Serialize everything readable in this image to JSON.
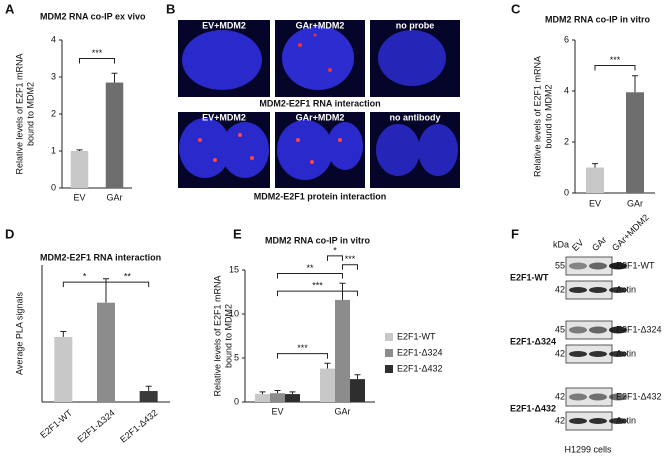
{
  "chart_data": [
    {
      "type": "bar",
      "panel": "A",
      "title": "MDM2 RNA co-IP ex vivo",
      "ylabel": [
        "Relative levels of E2F1 mRNA",
        "bound to MDM2"
      ],
      "categories": [
        "EV",
        "GAr"
      ],
      "values": [
        1.0,
        2.85
      ],
      "errors": [
        0.03,
        0.25
      ],
      "colors": [
        "#c8c8c8",
        "#6e6e6e"
      ],
      "ylim": [
        0,
        4
      ],
      "yticks": [
        0,
        1,
        2,
        3,
        4
      ],
      "annotations": [
        "***"
      ]
    },
    {
      "type": "bar",
      "panel": "C",
      "title": "MDM2 RNA co-IP in vitro",
      "ylabel": [
        "Relative levels of E2F1 mRNA",
        "bound to MDM2"
      ],
      "categories": [
        "EV",
        "GAr"
      ],
      "values": [
        1.0,
        3.95
      ],
      "errors": [
        0.15,
        0.65
      ],
      "colors": [
        "#c8c8c8",
        "#6e6e6e"
      ],
      "ylim": [
        0,
        6
      ],
      "yticks": [
        0,
        2,
        4,
        6
      ],
      "annotations": [
        "***"
      ]
    },
    {
      "type": "bar",
      "panel": "D",
      "title": "MDM2-E2F1 RNA interaction",
      "ylabel": [
        "Average PLA signals"
      ],
      "categories": [
        "E2F1-WT",
        "E2F1-Δ324",
        "E2F1-Δ432"
      ],
      "values": [
        9.5,
        14.5,
        1.6
      ],
      "errors": [
        0.8,
        3.5,
        0.7
      ],
      "colors": [
        "#c8c8c8",
        "#8c8c8c",
        "#3a3a3a"
      ],
      "ylim": [
        0,
        20
      ],
      "annotations": [
        "*",
        "**"
      ]
    },
    {
      "type": "bar",
      "panel": "E",
      "title": "MDM2 RNA co-IP in vitro",
      "ylabel": [
        "Relative levels of E2F1 mRNA",
        "bound to MDM2"
      ],
      "categories": [
        "EV",
        "GAr"
      ],
      "series": [
        {
          "name": "E2F1-WT",
          "color": "#c8c8c8",
          "values": [
            0.9,
            3.8
          ],
          "errors": [
            0.25,
            0.6
          ]
        },
        {
          "name": "E2F1-Δ324",
          "color": "#8c8c8c",
          "values": [
            1.0,
            11.6
          ],
          "errors": [
            0.3,
            1.9
          ]
        },
        {
          "name": "E2F1-Δ432",
          "color": "#2e2e2e",
          "values": [
            0.9,
            2.6
          ],
          "errors": [
            0.25,
            0.5
          ]
        }
      ],
      "ylim": [
        0,
        15
      ],
      "yticks": [
        0,
        5,
        10,
        15
      ],
      "annotations": [
        "***",
        "**",
        "***",
        "*",
        "***"
      ]
    }
  ],
  "panel_b": {
    "label": "B",
    "rows": [
      {
        "columns": [
          "EV+MDM2",
          "GAr+MDM2",
          "no probe"
        ],
        "caption": "MDM2-E2F1 RNA interaction"
      },
      {
        "columns": [
          "EV+MDM2",
          "GAr+MDM2",
          "no antibody"
        ],
        "caption": "MDM2-E2F1 protein interaction"
      }
    ]
  },
  "panel_f": {
    "label": "F",
    "unit": "kDa",
    "lanes": [
      "EV",
      "GAr",
      "GAr+MDM2"
    ],
    "blots": [
      {
        "name": "E2F1-WT",
        "markers": [
          55,
          42
        ],
        "bands": [
          "E2F1-WT",
          "Actin"
        ]
      },
      {
        "name": "E2F1-Δ324",
        "markers": [
          45,
          42
        ],
        "bands": [
          "E2F1-Δ324",
          "Actin"
        ]
      },
      {
        "name": "E2F1-Δ432",
        "markers": [
          42,
          42
        ],
        "bands": [
          "E2F1-Δ432",
          "Actin"
        ]
      }
    ],
    "cell_line": "H1299 cells"
  }
}
